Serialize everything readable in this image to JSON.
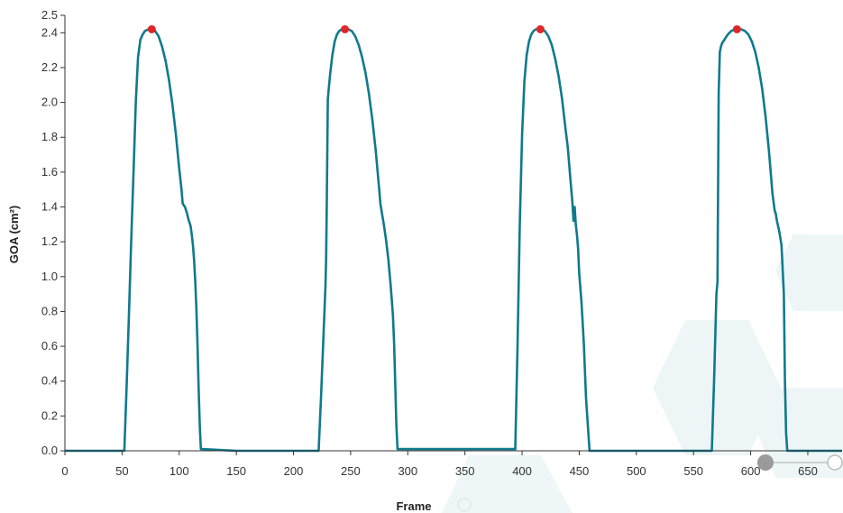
{
  "chart_data": {
    "type": "line",
    "title": "",
    "xlabel": "Frame",
    "ylabel": "GOA (cm²)",
    "xlim": [
      0,
      680
    ],
    "ylim": [
      0,
      2.5
    ],
    "x_ticks": [
      0,
      50,
      100,
      150,
      200,
      250,
      300,
      350,
      400,
      450,
      500,
      550,
      600,
      650
    ],
    "y_ticks": [
      0.0,
      0.2,
      0.4,
      0.6,
      0.8,
      1.0,
      1.2,
      1.4,
      1.6,
      1.8,
      2.0,
      2.2,
      2.4,
      2.5
    ],
    "y_tick_labels": [
      "0.0",
      "0.2",
      "0.4",
      "0.6",
      "0.8",
      "1.0",
      "1.2",
      "1.4",
      "1.6",
      "1.8",
      "2.0",
      "2.2",
      "2.4",
      "2.5"
    ],
    "grid": false,
    "legend": "none",
    "series": [
      {
        "color": "#0f7a8c",
        "x": [
          0,
          52,
          54,
          56,
          58,
          60,
          62,
          64,
          66,
          68,
          70,
          73,
          76,
          79,
          82,
          85,
          88,
          91,
          94,
          97,
          100,
          102,
          103,
          104,
          105,
          106,
          107,
          108,
          109,
          110,
          111,
          112,
          113,
          114,
          115,
          116,
          117,
          118,
          119,
          120,
          150,
          200,
          222,
          224,
          226,
          228,
          228.5,
          229,
          230,
          232,
          234,
          236,
          238,
          240,
          242,
          245,
          248,
          251,
          254,
          257,
          260,
          263,
          266,
          269,
          272,
          275,
          276,
          277,
          279,
          281,
          283,
          285,
          287,
          288,
          289,
          290,
          291,
          300,
          350,
          394,
          396,
          398,
          400,
          402,
          404,
          406,
          408,
          410,
          412,
          414,
          417,
          420,
          423,
          426,
          429,
          432,
          435,
          438,
          440,
          442,
          444,
          445,
          446,
          446.5,
          447,
          448,
          449,
          450,
          452,
          454,
          456,
          458,
          459,
          460,
          500,
          565,
          566,
          568,
          570,
          571,
          572,
          573,
          574,
          575,
          576,
          578,
          580,
          583,
          586,
          589,
          592,
          595,
          598,
          601,
          604,
          607,
          610,
          613,
          616,
          619,
          621,
          622,
          623,
          625,
          627,
          629,
          630,
          631,
          632,
          680
        ],
        "values": [
          0.0,
          0.0,
          0.38,
          0.78,
          1.2,
          1.6,
          2.0,
          2.26,
          2.36,
          2.39,
          2.41,
          2.42,
          2.42,
          2.41,
          2.38,
          2.32,
          2.24,
          2.13,
          1.99,
          1.82,
          1.62,
          1.5,
          1.42,
          1.41,
          1.4,
          1.38,
          1.36,
          1.33,
          1.31,
          1.29,
          1.24,
          1.18,
          1.1,
          0.98,
          0.82,
          0.62,
          0.36,
          0.14,
          0.01,
          0.01,
          0.0,
          0.0,
          0.0,
          0.3,
          0.62,
          0.95,
          1.1,
          1.35,
          2.02,
          2.16,
          2.27,
          2.35,
          2.39,
          2.41,
          2.42,
          2.42,
          2.42,
          2.41,
          2.38,
          2.33,
          2.26,
          2.17,
          2.05,
          1.9,
          1.72,
          1.5,
          1.42,
          1.38,
          1.3,
          1.21,
          1.1,
          0.95,
          0.78,
          0.62,
          0.4,
          0.15,
          0.01,
          0.01,
          0.01,
          0.01,
          0.6,
          1.3,
          1.82,
          2.12,
          2.27,
          2.35,
          2.39,
          2.41,
          2.42,
          2.42,
          2.42,
          2.41,
          2.38,
          2.33,
          2.25,
          2.15,
          2.02,
          1.85,
          1.74,
          1.58,
          1.43,
          1.32,
          1.4,
          1.35,
          1.3,
          1.24,
          1.16,
          1.02,
          0.85,
          0.62,
          0.3,
          0.1,
          0.0,
          0.0,
          0.0,
          0.0,
          0.0,
          0.4,
          0.9,
          0.97,
          2.05,
          2.29,
          2.32,
          2.34,
          2.35,
          2.37,
          2.39,
          2.41,
          2.42,
          2.42,
          2.42,
          2.41,
          2.39,
          2.35,
          2.29,
          2.2,
          2.08,
          1.92,
          1.72,
          1.48,
          1.38,
          1.36,
          1.32,
          1.26,
          1.18,
          0.9,
          0.4,
          0.1,
          0.0,
          0.0
        ]
      }
    ],
    "peaks": [
      {
        "x": 76,
        "y": 2.42
      },
      {
        "x": 245,
        "y": 2.42
      },
      {
        "x": 416,
        "y": 2.42
      },
      {
        "x": 588,
        "y": 2.42
      }
    ],
    "peak_color": "#e0262b"
  }
}
